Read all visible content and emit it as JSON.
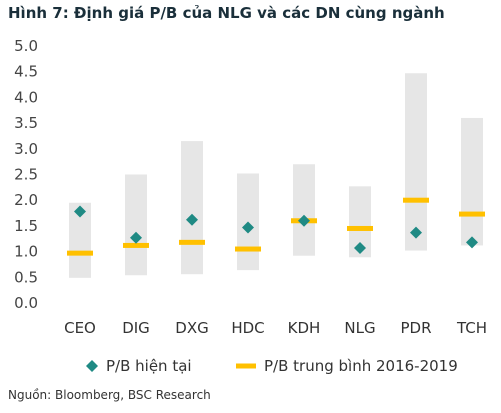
{
  "header": {
    "title": "Hình 7: Định giá P/B của NLG và các DN cùng ngành"
  },
  "footer": {
    "source": "Nguồn: Bloomberg, BSC Research"
  },
  "chart_data": {
    "type": "scatter",
    "title": "",
    "xlabel": "",
    "ylabel": "",
    "categories": [
      "CEO",
      "DIG",
      "DXG",
      "HDC",
      "KDH",
      "NLG",
      "PDR",
      "TCH"
    ],
    "ylim": [
      0,
      5
    ],
    "yticks": [
      "0.0",
      "0.5",
      "1.0",
      "1.5",
      "2.0",
      "2.5",
      "3.0",
      "3.5",
      "4.0",
      "4.5",
      "5.0"
    ],
    "grid": false,
    "legend_position": "bottom",
    "range": {
      "low": [
        0.49,
        0.54,
        0.56,
        0.64,
        0.92,
        0.89,
        1.02,
        1.12
      ],
      "high": [
        1.95,
        2.5,
        3.15,
        2.52,
        2.7,
        2.27,
        4.47,
        3.6
      ],
      "color": "#e6e6e6"
    },
    "series": [
      {
        "name": "P/B hiện tại",
        "marker": "diamond",
        "color": "#1f8a84",
        "values": [
          1.78,
          1.27,
          1.62,
          1.47,
          1.6,
          1.07,
          1.37,
          1.18
        ]
      },
      {
        "name": "P/B trung bình 2016-2019",
        "marker": "dash",
        "color": "#ffc000",
        "values": [
          0.97,
          1.12,
          1.18,
          1.05,
          1.6,
          1.45,
          2.0,
          1.73
        ]
      }
    ]
  }
}
